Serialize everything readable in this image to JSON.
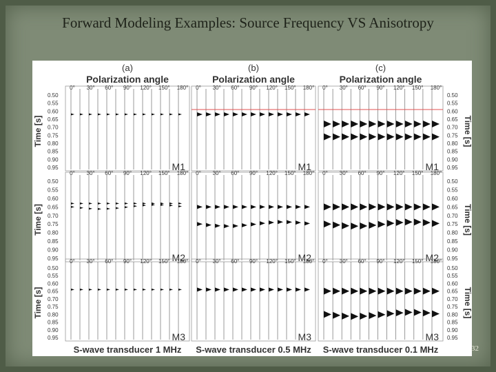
{
  "title": "Forward Modeling Examples: Source Frequency VS Anisotropy",
  "figure": {
    "columns": [
      {
        "label": "(a)",
        "axis_title": "Polarization angle",
        "caption": "S-wave transducer 1 MHz"
      },
      {
        "label": "(b)",
        "axis_title": "Polarization angle",
        "caption": "S-wave transducer 0.5 MHz"
      },
      {
        "label": "(c)",
        "axis_title": "Polarization angle",
        "caption": "S-wave transducer 0.1 MHz"
      }
    ],
    "angle_ticks": [
      "0°",
      "30°",
      "60°",
      "90°",
      "120°",
      "150°",
      "180°"
    ],
    "time_ticks": [
      "0.50",
      "0.55",
      "0.60",
      "0.65",
      "0.70",
      "0.75",
      "0.80",
      "0.85",
      "0.90",
      "0.95"
    ],
    "time_axis_title": "Time [s]",
    "models": [
      "M1",
      "M2",
      "M3"
    ]
  },
  "page_number": "32"
}
